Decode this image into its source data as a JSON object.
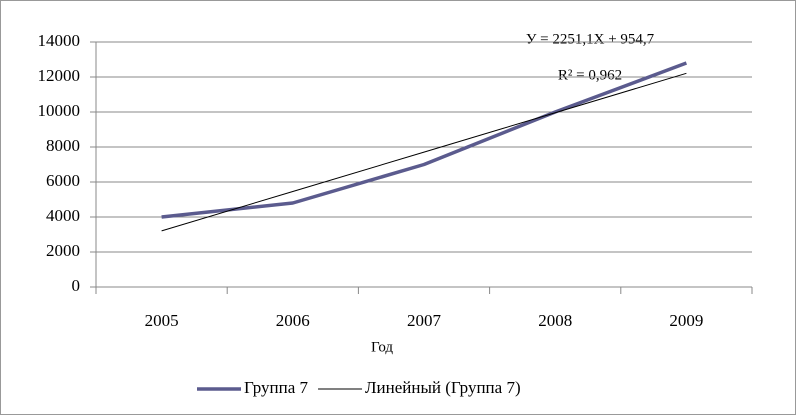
{
  "chart_data": {
    "type": "line",
    "x_label": "Год",
    "categories": [
      "2005",
      "2006",
      "2007",
      "2008",
      "2009"
    ],
    "series": [
      {
        "name": "Группа 7",
        "color": "#5b5b8e",
        "values": [
          4000,
          4800,
          7000,
          10000,
          12800
        ]
      },
      {
        "name": "Линейный (Группа 7)",
        "color": "#000000",
        "values": [
          3205.8,
          5456.9,
          7708,
          9959.1,
          12210.2
        ]
      }
    ],
    "annotations": [
      "У = 2251,1Х + 954,7",
      "R² = 0,962"
    ],
    "ylim": [
      0,
      14000
    ],
    "yticks": [
      0,
      2000,
      4000,
      6000,
      8000,
      10000,
      12000,
      14000
    ],
    "grid": true,
    "legend": "bottom"
  }
}
